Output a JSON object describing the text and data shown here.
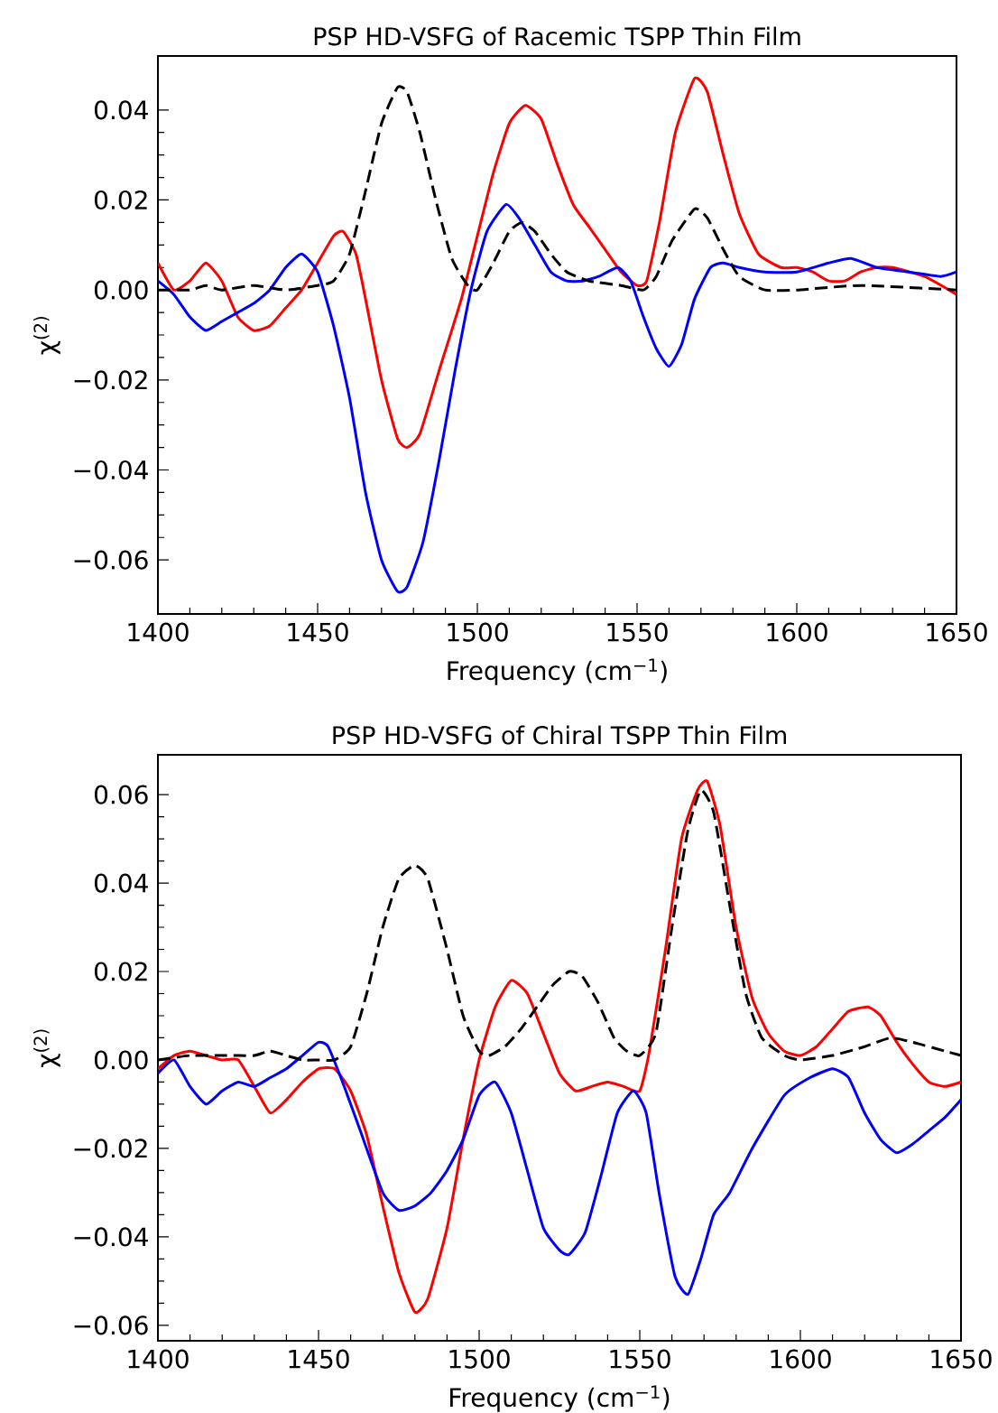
{
  "chart_data": [
    {
      "type": "line",
      "title": "PSP HD-VSFG of Racemic TSPP Thin Film",
      "xlabel": "Frequency (cm$^{−1}$)",
      "ylabel": "χ$^{(2)}$",
      "xlim": [
        1400,
        1650
      ],
      "ylim": [
        -0.072,
        0.052
      ],
      "xticks": [
        1400,
        1450,
        1500,
        1550,
        1600,
        1650
      ],
      "yticks": [
        {
          "value": -0.06,
          "label": "−0.06"
        },
        {
          "value": -0.04,
          "label": "−0.04"
        },
        {
          "value": -0.02,
          "label": "−0.02"
        },
        {
          "value": 0,
          "label": "0.00"
        },
        {
          "value": 0.02,
          "label": "0.02"
        },
        {
          "value": 0.04,
          "label": "0.04"
        }
      ],
      "series": [
        {
          "color": "#ff0000",
          "line_style": "solid",
          "x": [
            1400,
            1405,
            1410,
            1415,
            1420,
            1425,
            1430,
            1435,
            1440,
            1445,
            1450,
            1455,
            1458,
            1462,
            1465,
            1470,
            1475,
            1478,
            1482,
            1488,
            1495,
            1500,
            1505,
            1510,
            1515,
            1520,
            1525,
            1530,
            1535,
            1540,
            1545,
            1550,
            1553,
            1557,
            1562,
            1568,
            1572,
            1577,
            1582,
            1588,
            1595,
            1600,
            1605,
            1610,
            1615,
            1620,
            1625,
            1630,
            1640,
            1650
          ],
          "values": [
            0.006,
            0.0,
            0.002,
            0.006,
            0.002,
            -0.006,
            -0.009,
            -0.008,
            -0.004,
            0.0,
            0.006,
            0.012,
            0.013,
            0.008,
            -0.002,
            -0.02,
            -0.033,
            -0.035,
            -0.032,
            -0.018,
            -0.002,
            0.012,
            0.026,
            0.037,
            0.041,
            0.038,
            0.028,
            0.019,
            0.014,
            0.009,
            0.004,
            0.001,
            0.002,
            0.015,
            0.035,
            0.047,
            0.044,
            0.03,
            0.017,
            0.008,
            0.005,
            0.005,
            0.004,
            0.002,
            0.002,
            0.004,
            0.005,
            0.005,
            0.003,
            -0.001
          ]
        },
        {
          "color": "#0000ff",
          "line_style": "solid",
          "x": [
            1400,
            1405,
            1410,
            1415,
            1420,
            1425,
            1430,
            1435,
            1440,
            1445,
            1450,
            1455,
            1460,
            1465,
            1470,
            1475,
            1478,
            1483,
            1488,
            1493,
            1498,
            1503,
            1509,
            1513,
            1518,
            1523,
            1528,
            1533,
            1538,
            1544,
            1548,
            1552,
            1556,
            1560,
            1564,
            1568,
            1573,
            1577,
            1582,
            1590,
            1600,
            1610,
            1617,
            1625,
            1635,
            1645,
            1650
          ],
          "values": [
            0.002,
            -0.001,
            -0.006,
            -0.009,
            -0.007,
            -0.005,
            -0.003,
            0.0,
            0.005,
            0.008,
            0.004,
            -0.008,
            -0.024,
            -0.045,
            -0.06,
            -0.067,
            -0.066,
            -0.056,
            -0.038,
            -0.018,
            0.0,
            0.013,
            0.019,
            0.016,
            0.01,
            0.004,
            0.002,
            0.002,
            0.003,
            0.005,
            0.002,
            -0.006,
            -0.013,
            -0.017,
            -0.012,
            -0.002,
            0.005,
            0.006,
            0.005,
            0.004,
            0.004,
            0.006,
            0.007,
            0.005,
            0.004,
            0.003,
            0.004
          ]
        },
        {
          "color": "#000000",
          "line_style": "dashed",
          "x": [
            1400,
            1410,
            1415,
            1420,
            1430,
            1440,
            1450,
            1455,
            1460,
            1465,
            1470,
            1475,
            1478,
            1482,
            1487,
            1492,
            1497,
            1500,
            1505,
            1510,
            1514,
            1518,
            1523,
            1528,
            1535,
            1545,
            1552,
            1556,
            1561,
            1568,
            1572,
            1577,
            1582,
            1590,
            1600,
            1620,
            1650
          ],
          "values": [
            0.0,
            0.0,
            0.001,
            0.0,
            0.001,
            0.0,
            0.001,
            0.002,
            0.008,
            0.022,
            0.037,
            0.045,
            0.044,
            0.035,
            0.02,
            0.007,
            0.001,
            0.0,
            0.006,
            0.013,
            0.015,
            0.013,
            0.008,
            0.004,
            0.002,
            0.001,
            0.0,
            0.003,
            0.011,
            0.018,
            0.016,
            0.009,
            0.003,
            0.0,
            0.0,
            0.001,
            0.0
          ]
        }
      ]
    },
    {
      "type": "line",
      "title": "PSP HD-VSFG of Chiral TSPP Thin Film",
      "xlabel": "Frequency (cm$^{−1}$)",
      "ylabel": "χ$^{(2)}$",
      "xlim": [
        1400,
        1650
      ],
      "ylim": [
        -0.0635,
        0.069
      ],
      "xticks": [
        1400,
        1450,
        1500,
        1550,
        1600,
        1650
      ],
      "yticks": [
        {
          "value": -0.06,
          "label": "−0.06"
        },
        {
          "value": -0.04,
          "label": "−0.04"
        },
        {
          "value": -0.02,
          "label": "−0.02"
        },
        {
          "value": 0,
          "label": "0.00"
        },
        {
          "value": 0.02,
          "label": "0.02"
        },
        {
          "value": 0.04,
          "label": "0.04"
        },
        {
          "value": 0.06,
          "label": "0.06"
        }
      ],
      "series": [
        {
          "color": "#ff0000",
          "line_style": "solid",
          "x": [
            1400,
            1405,
            1410,
            1415,
            1420,
            1425,
            1430,
            1435,
            1440,
            1445,
            1450,
            1455,
            1460,
            1465,
            1470,
            1475,
            1480,
            1484,
            1490,
            1495,
            1500,
            1505,
            1510,
            1515,
            1520,
            1525,
            1530,
            1535,
            1540,
            1545,
            1550,
            1553,
            1558,
            1563,
            1568,
            1571,
            1575,
            1580,
            1585,
            1590,
            1595,
            1600,
            1605,
            1610,
            1615,
            1621,
            1625,
            1630,
            1635,
            1640,
            1645,
            1650
          ],
          "values": [
            -0.002,
            0.001,
            0.002,
            0.001,
            0.0,
            0.0,
            -0.006,
            -0.012,
            -0.009,
            -0.005,
            -0.002,
            -0.002,
            -0.007,
            -0.017,
            -0.033,
            -0.048,
            -0.057,
            -0.054,
            -0.038,
            -0.018,
            0.0,
            0.012,
            0.018,
            0.015,
            0.006,
            -0.003,
            -0.007,
            -0.006,
            -0.005,
            -0.006,
            -0.007,
            0.002,
            0.025,
            0.05,
            0.061,
            0.063,
            0.053,
            0.03,
            0.014,
            0.006,
            0.002,
            0.001,
            0.003,
            0.007,
            0.011,
            0.012,
            0.01,
            0.004,
            -0.001,
            -0.005,
            -0.006,
            -0.005
          ]
        },
        {
          "color": "#0000ff",
          "line_style": "solid",
          "x": [
            1400,
            1405,
            1410,
            1415,
            1420,
            1425,
            1430,
            1435,
            1440,
            1445,
            1450,
            1453,
            1458,
            1463,
            1470,
            1475,
            1480,
            1485,
            1490,
            1495,
            1500,
            1505,
            1510,
            1515,
            1520,
            1525,
            1528,
            1533,
            1538,
            1543,
            1548,
            1552,
            1556,
            1561,
            1565,
            1569,
            1573,
            1578,
            1585,
            1595,
            1603,
            1610,
            1615,
            1620,
            1625,
            1630,
            1635,
            1640,
            1645,
            1650
          ],
          "values": [
            -0.003,
            0.0,
            -0.006,
            -0.01,
            -0.007,
            -0.005,
            -0.006,
            -0.004,
            -0.002,
            0.001,
            0.004,
            0.003,
            -0.006,
            -0.016,
            -0.03,
            -0.034,
            -0.033,
            -0.03,
            -0.025,
            -0.018,
            -0.008,
            -0.005,
            -0.012,
            -0.025,
            -0.038,
            -0.043,
            -0.044,
            -0.039,
            -0.026,
            -0.012,
            -0.007,
            -0.012,
            -0.03,
            -0.049,
            -0.053,
            -0.045,
            -0.035,
            -0.03,
            -0.02,
            -0.008,
            -0.004,
            -0.002,
            -0.004,
            -0.012,
            -0.018,
            -0.021,
            -0.019,
            -0.016,
            -0.013,
            -0.009
          ]
        },
        {
          "color": "#000000",
          "line_style": "dashed",
          "x": [
            1400,
            1410,
            1420,
            1425,
            1430,
            1435,
            1440,
            1445,
            1450,
            1455,
            1460,
            1465,
            1470,
            1475,
            1480,
            1484,
            1490,
            1495,
            1500,
            1503,
            1508,
            1513,
            1518,
            1523,
            1528,
            1532,
            1537,
            1542,
            1546,
            1550,
            1555,
            1560,
            1565,
            1569,
            1573,
            1578,
            1583,
            1588,
            1595,
            1600,
            1610,
            1620,
            1628,
            1635,
            1645,
            1650
          ],
          "values": [
            0.0,
            0.001,
            0.001,
            0.001,
            0.001,
            0.002,
            0.001,
            0.0,
            0.0,
            0.0,
            0.003,
            0.015,
            0.03,
            0.041,
            0.044,
            0.041,
            0.025,
            0.01,
            0.002,
            0.001,
            0.003,
            0.007,
            0.012,
            0.017,
            0.02,
            0.019,
            0.013,
            0.005,
            0.002,
            0.001,
            0.006,
            0.03,
            0.052,
            0.061,
            0.056,
            0.035,
            0.015,
            0.005,
            0.001,
            0.0,
            0.001,
            0.003,
            0.005,
            0.004,
            0.002,
            0.001
          ]
        }
      ]
    }
  ]
}
